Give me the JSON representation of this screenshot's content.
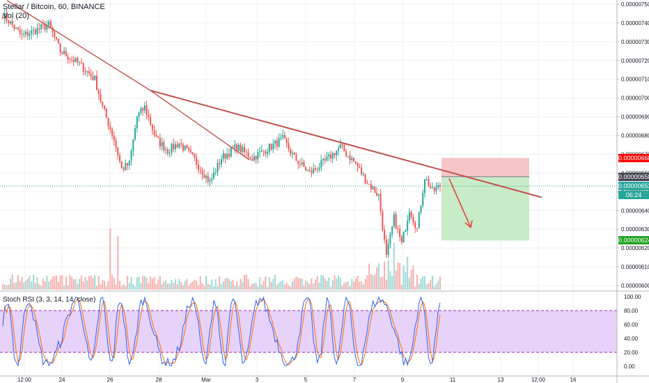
{
  "header": {
    "symbol": "Stellar / Bitcoin, 60, BINANCE",
    "volume": "Vol (20)",
    "indicator": "Stoch RSI (3, 3, 14, 14, close)"
  },
  "tags": {
    "stop": "0.00000668",
    "entry": "0.00000658",
    "last": "0.00000653",
    "timer": "06:24",
    "target": "0.00000624"
  },
  "colors": {
    "up": "#26a69a",
    "down": "#ef5350",
    "trendline": "#c0504d",
    "stop_zone": "#f8c5c6",
    "target_zone": "#c8ebc8",
    "stop_tag": "#ff0000",
    "target_tag": "#1ea11e",
    "last_tag": "#26a69a",
    "entry_tag": "#434651",
    "rsi_band": "#e1c7f7",
    "k_line": "#2962ff",
    "d_line": "#ff6d00"
  },
  "chart_data": [
    {
      "type": "candlestick",
      "title": "Stellar / Bitcoin, 60, BINANCE",
      "price_axis_ticks": [
        "0.00000750",
        "0.00000740",
        "0.00000730",
        "0.00000720",
        "0.00000710",
        "0.00000700",
        "0.00000690",
        "0.00000680",
        "0.00000670",
        "0.00000660",
        "0.00000650",
        "0.00000640",
        "0.00000630",
        "0.00000620",
        "0.00000610",
        "0.00000600"
      ],
      "time_axis_ticks": [
        "12:00",
        "24",
        "26",
        "28",
        "Mar",
        "3",
        "5",
        "7",
        "9",
        "11",
        "13",
        "12:00",
        "16"
      ],
      "ylim": [
        6e-06,
        7.5e-06
      ],
      "keypoints_price": [
        {
          "t": 0,
          "p": 7.445e-06
        },
        {
          "t": 10,
          "p": 7.33e-06
        },
        {
          "t": 24,
          "p": 7.39e-06
        },
        {
          "t": 30,
          "p": 7.25e-06
        },
        {
          "t": 40,
          "p": 7.18e-06
        },
        {
          "t": 48,
          "p": 7.1e-06
        },
        {
          "t": 52,
          "p": 6.95e-06
        },
        {
          "t": 58,
          "p": 6.78e-06
        },
        {
          "t": 62,
          "p": 6.62e-06
        },
        {
          "t": 66,
          "p": 6.65e-06
        },
        {
          "t": 70,
          "p": 6.9e-06
        },
        {
          "t": 74,
          "p": 6.95e-06
        },
        {
          "t": 80,
          "p": 6.78e-06
        },
        {
          "t": 86,
          "p": 6.72e-06
        },
        {
          "t": 92,
          "p": 6.76e-06
        },
        {
          "t": 100,
          "p": 6.67e-06
        },
        {
          "t": 108,
          "p": 6.55e-06
        },
        {
          "t": 114,
          "p": 6.68e-06
        },
        {
          "t": 122,
          "p": 6.74e-06
        },
        {
          "t": 130,
          "p": 6.68e-06
        },
        {
          "t": 138,
          "p": 6.73e-06
        },
        {
          "t": 146,
          "p": 6.78e-06
        },
        {
          "t": 152,
          "p": 6.68e-06
        },
        {
          "t": 160,
          "p": 6.6e-06
        },
        {
          "t": 168,
          "p": 6.66e-06
        },
        {
          "t": 176,
          "p": 6.74e-06
        },
        {
          "t": 184,
          "p": 6.65e-06
        },
        {
          "t": 190,
          "p": 6.55e-06
        },
        {
          "t": 196,
          "p": 6.48e-06
        },
        {
          "t": 200,
          "p": 6.15e-06
        },
        {
          "t": 204,
          "p": 6.36e-06
        },
        {
          "t": 208,
          "p": 6.22e-06
        },
        {
          "t": 212,
          "p": 6.41e-06
        },
        {
          "t": 216,
          "p": 6.3e-06
        },
        {
          "t": 220,
          "p": 6.58e-06
        },
        {
          "t": 224,
          "p": 6.5e-06
        },
        {
          "t": 228,
          "p": 6.53e-06
        }
      ],
      "trendlines": [
        {
          "from": {
            "date": "23",
            "price": 7.52e-06
          },
          "to": {
            "date": "28",
            "price": 7.04e-06
          }
        },
        {
          "from": {
            "date": "28",
            "price": 7.04e-06
          },
          "to": {
            "date": "2 Mar",
            "price": 6.67e-06
          }
        },
        {
          "from": {
            "date": "28",
            "price": 7.04e-06
          },
          "to": {
            "date": "12 Mar",
            "price": 6.47e-06
          }
        }
      ],
      "position": {
        "stop": 6.68e-06,
        "entry": 6.58e-06,
        "target": 6.24e-06,
        "direction": "short"
      },
      "last_price": 6.53e-06
    },
    {
      "type": "bar",
      "title": "Vol (20)",
      "note": "volume histogram under price panel"
    },
    {
      "type": "line",
      "title": "Stoch RSI (3, 3, 14, 14, close)",
      "axis_ticks": [
        "100.00",
        "80.00",
        "60.00",
        "40.00",
        "20.00",
        "0.00"
      ],
      "ylim": [
        0,
        100
      ],
      "band": [
        20,
        80
      ]
    }
  ]
}
